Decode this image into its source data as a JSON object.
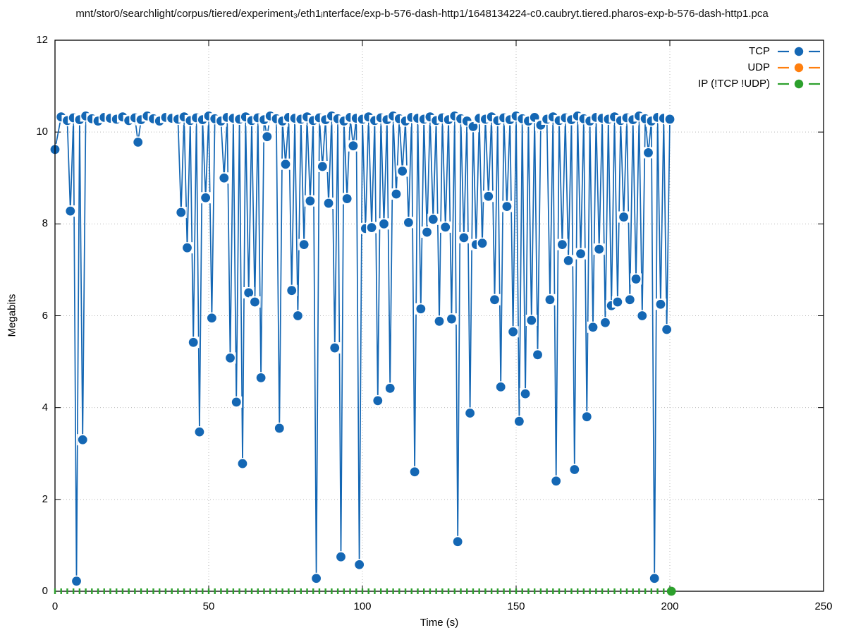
{
  "chart_data": {
    "type": "line",
    "title": "mnt/stor0/searchlight/corpus/tiered/experiment₃/eth1ᵢnterface/exp-b-576-dash-http1/1648134224-c0.caubryt.tiered.pharos-exp-b-576-dash-http1.pca",
    "xlabel": "Time (s)",
    "ylabel": "Megabits",
    "xlim": [
      0,
      250
    ],
    "ylim": [
      0,
      12
    ],
    "x_ticks": [
      0,
      50,
      100,
      150,
      200,
      250
    ],
    "y_ticks": [
      0,
      2,
      4,
      6,
      8,
      10,
      12
    ],
    "grid": true,
    "legend_position": "top-right-inside",
    "series": [
      {
        "name": "TCP",
        "color": "#1467b4",
        "marker": "circle",
        "base": {
          "t_from": 0,
          "t_to": 200,
          "step": 2,
          "values_cycle": [
            10.28,
            10.33,
            10.25,
            10.31,
            10.27,
            10.35,
            10.29,
            10.24,
            10.32,
            10.3
          ]
        },
        "overrides": {
          "0": 9.62,
          "136": 10.12,
          "158": 10.15
        },
        "dips": {
          "5": 8.28,
          "7": 0.22,
          "9": 3.3,
          "27": 9.78,
          "41": 8.25,
          "43": 7.48,
          "45": 5.42,
          "47": 3.47,
          "49": 8.57,
          "51": 5.95,
          "55": 9.0,
          "57": 5.08,
          "59": 4.12,
          "61": 2.78,
          "63": 6.5,
          "65": 6.3,
          "67": 4.65,
          "69": 9.9,
          "73": 3.55,
          "75": 9.3,
          "77": 6.55,
          "79": 6.0,
          "81": 7.55,
          "83": 8.5,
          "85": 0.28,
          "87": 9.25,
          "89": 8.45,
          "91": 5.3,
          "93": 0.75,
          "95": 8.55,
          "97": 9.7,
          "99": 0.58,
          "101": 7.9,
          "103": 7.92,
          "105": 4.15,
          "107": 8.0,
          "109": 4.42,
          "111": 8.65,
          "113": 9.15,
          "115": 8.03,
          "117": 2.6,
          "119": 6.15,
          "121": 7.82,
          "123": 8.1,
          "125": 5.88,
          "127": 7.93,
          "129": 5.93,
          "131": 1.08,
          "133": 7.7,
          "135": 3.88,
          "137": 7.55,
          "139": 7.58,
          "141": 8.6,
          "143": 6.35,
          "145": 4.45,
          "147": 8.38,
          "149": 5.65,
          "151": 3.7,
          "153": 4.3,
          "155": 5.9,
          "157": 5.15,
          "161": 6.35,
          "163": 2.4,
          "165": 7.55,
          "167": 7.2,
          "169": 2.65,
          "171": 7.35,
          "173": 3.8,
          "175": 5.75,
          "177": 7.45,
          "179": 5.85,
          "181": 6.22,
          "183": 6.3,
          "185": 8.15,
          "187": 6.35,
          "189": 6.8,
          "191": 6.0,
          "193": 9.55,
          "195": 0.28,
          "197": 6.25,
          "199": 5.7
        }
      },
      {
        "name": "UDP",
        "color": "#ff7f0e",
        "marker": "circle",
        "points": []
      },
      {
        "name": "IP (!TCP  !UDP)",
        "color": "#2ca02c",
        "marker": "circle",
        "base": {
          "t_from": 0,
          "t_to": 198,
          "step": 2,
          "values_cycle": [
            0
          ]
        },
        "end_point": [
          200.5,
          0
        ],
        "render": "axis-slivers"
      }
    ]
  },
  "legend": {
    "items": [
      {
        "label": "TCP",
        "color": "#1467b4"
      },
      {
        "label": "UDP",
        "color": "#ff7f0e"
      },
      {
        "label": "IP (!TCP  !UDP)",
        "color": "#2ca02c"
      }
    ]
  }
}
